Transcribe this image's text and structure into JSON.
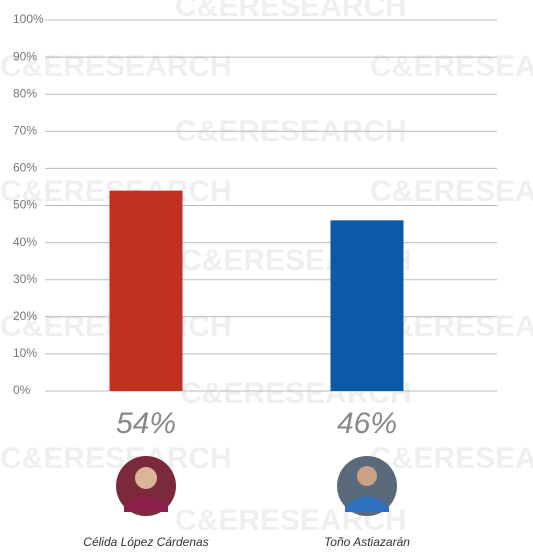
{
  "chart_data": {
    "type": "bar",
    "watermark": "C&ERESEARCH",
    "categories": [
      "Célida López Cárdenas",
      "Toño Astiazarán"
    ],
    "values": [
      54,
      46
    ],
    "value_labels": [
      "54%",
      "46%"
    ],
    "colors": [
      "#c0321f",
      "#0b5aa8"
    ],
    "ylim": [
      0,
      100
    ],
    "yticks": [
      {
        "value": 0,
        "label": "0%"
      },
      {
        "value": 10,
        "label": "10%"
      },
      {
        "value": 20,
        "label": "20%"
      },
      {
        "value": 30,
        "label": "30%"
      },
      {
        "value": 40,
        "label": "40%"
      },
      {
        "value": 50,
        "label": "50%"
      },
      {
        "value": 60,
        "label": "60%"
      },
      {
        "value": 70,
        "label": "70%"
      },
      {
        "value": 80,
        "label": "80%"
      },
      {
        "value": 90,
        "label": "90%"
      },
      {
        "value": 100,
        "label": "100%"
      }
    ],
    "grid": true
  }
}
